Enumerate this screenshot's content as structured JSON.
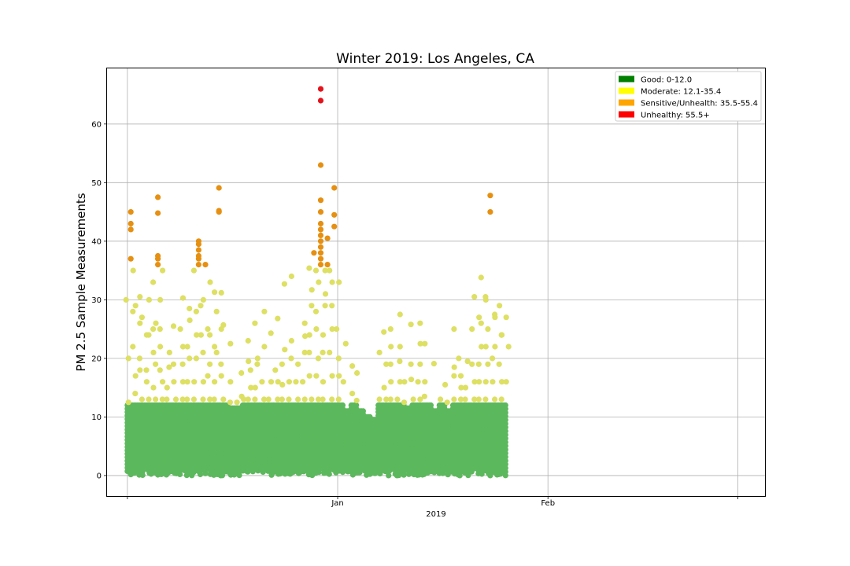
{
  "chart_data": {
    "type": "scatter",
    "title": "Winter 2019: Los Angeles, CA",
    "xlabel": "2019",
    "ylabel": "PM 2.5 Sample Measurements",
    "x_range": [
      "2018-12-01",
      "2019-02-28"
    ],
    "ylim": [
      -3.5,
      69.5
    ],
    "y_ticks": [
      0,
      10,
      20,
      30,
      40,
      50,
      60
    ],
    "x_ticks": [
      {
        "date": "2018-12-01",
        "label": ""
      },
      {
        "date": "2019-01-01",
        "label": "Jan"
      },
      {
        "date": "2019-02-01",
        "label": "Feb"
      },
      {
        "date": "2019-03-01",
        "label": ""
      }
    ],
    "x_major_label": "2019",
    "grid": true,
    "legend_position": "top-right",
    "legend": [
      {
        "label": "Good: 0-12.0",
        "color": "#008000"
      },
      {
        "label": "Moderate: 12.1-35.4",
        "color": "#ffff00"
      },
      {
        "label": "Sensitive/Unhealth: 35.5-55.4",
        "color": "#ffa500"
      },
      {
        "label": "Unhealthy: 55.5+",
        "color": "#ff0000"
      }
    ],
    "marker_colors": {
      "good": "#5cb85c",
      "moderate": "#dde063",
      "sensitive": "#e69012",
      "unhealthy": "#e4131b"
    },
    "daily": [
      {
        "date": "2018-12-01",
        "green_max": 12.0,
        "yellow": [
          12.5,
          17,
          20,
          29,
          30,
          35
        ],
        "orange": [
          37,
          42,
          43,
          45
        ],
        "red": []
      },
      {
        "date": "2018-12-02",
        "green_max": 12.0,
        "yellow": [
          14,
          18,
          22,
          26,
          28,
          30.5
        ],
        "orange": [],
        "red": []
      },
      {
        "date": "2018-12-03",
        "green_max": 12.0,
        "yellow": [
          13,
          16,
          20,
          24,
          27,
          30
        ],
        "orange": [],
        "red": []
      },
      {
        "date": "2018-12-04",
        "green_max": 12.0,
        "yellow": [
          13,
          15,
          18,
          21,
          24,
          26
        ],
        "orange": [],
        "red": []
      },
      {
        "date": "2018-12-05",
        "green_max": 12.0,
        "yellow": [
          13,
          16,
          19,
          22,
          25,
          30,
          33,
          35
        ],
        "orange": [
          36,
          37,
          37.5,
          44.8,
          47.5
        ],
        "red": []
      },
      {
        "date": "2018-12-06",
        "green_max": 12.0,
        "yellow": [
          13,
          15,
          18,
          21,
          25
        ],
        "orange": [],
        "red": []
      },
      {
        "date": "2018-12-07",
        "green_max": 12.0,
        "yellow": [
          13,
          16,
          18.5
        ],
        "orange": [],
        "red": []
      },
      {
        "date": "2018-12-08",
        "green_max": 12.0,
        "yellow": [
          13,
          16,
          19,
          22,
          25.5,
          30.3
        ],
        "orange": [],
        "red": []
      },
      {
        "date": "2018-12-09",
        "green_max": 12.0,
        "yellow": [
          13,
          16,
          19,
          22,
          25,
          26.5
        ],
        "orange": [],
        "red": []
      },
      {
        "date": "2018-12-10",
        "green_max": 12.0,
        "yellow": [
          13,
          16,
          20,
          24,
          28.5
        ],
        "orange": [],
        "red": []
      },
      {
        "date": "2018-12-11",
        "green_max": 12.0,
        "yellow": [
          13,
          16,
          20,
          24,
          28,
          30,
          35
        ],
        "orange": [
          36,
          37,
          37.5,
          38.5,
          39.5,
          40
        ],
        "red": []
      },
      {
        "date": "2018-12-12",
        "green_max": 12.0,
        "yellow": [
          13,
          17,
          21,
          25,
          29,
          33
        ],
        "orange": [
          36
        ],
        "red": []
      },
      {
        "date": "2018-12-13",
        "green_max": 12.0,
        "yellow": [
          13,
          16,
          19,
          22,
          24,
          31.3
        ],
        "orange": [],
        "red": []
      },
      {
        "date": "2018-12-14",
        "green_max": 12.0,
        "yellow": [
          13,
          17,
          21,
          25,
          28,
          31.2
        ],
        "orange": [
          45,
          45.2,
          49.1
        ],
        "red": []
      },
      {
        "date": "2018-12-15",
        "green_max": 12.0,
        "yellow": [
          13,
          16,
          19,
          22.5,
          25.7
        ],
        "orange": [],
        "red": []
      },
      {
        "date": "2018-12-16",
        "green_max": 11.5,
        "yellow": [
          12.5
        ],
        "orange": [],
        "red": []
      },
      {
        "date": "2018-12-17",
        "green_max": 11.5,
        "yellow": [
          12.5,
          13.5
        ],
        "orange": [],
        "red": []
      },
      {
        "date": "2018-12-18",
        "green_max": 12.0,
        "yellow": [
          13,
          15,
          17.5,
          19.5
        ],
        "orange": [],
        "red": []
      },
      {
        "date": "2018-12-19",
        "green_max": 12.0,
        "yellow": [
          13,
          15,
          18,
          20,
          23
        ],
        "orange": [],
        "red": []
      },
      {
        "date": "2018-12-20",
        "green_max": 12.0,
        "yellow": [
          13,
          16,
          19,
          22,
          26,
          28
        ],
        "orange": [],
        "red": []
      },
      {
        "date": "2018-12-21",
        "green_max": 12.0,
        "yellow": [
          13,
          16
        ],
        "orange": [],
        "red": []
      },
      {
        "date": "2018-12-22",
        "green_max": 12.0,
        "yellow": [
          13,
          16,
          24.3
        ],
        "orange": [],
        "red": []
      },
      {
        "date": "2018-12-23",
        "green_max": 12.0,
        "yellow": [
          13,
          15.5,
          18,
          21.5,
          26.8
        ],
        "orange": [],
        "red": []
      },
      {
        "date": "2018-12-24",
        "green_max": 12.0,
        "yellow": [
          13,
          16,
          19,
          23,
          32.7,
          34
        ],
        "orange": [],
        "red": []
      },
      {
        "date": "2018-12-25",
        "green_max": 12.0,
        "yellow": [
          13,
          16,
          20
        ],
        "orange": [],
        "red": []
      },
      {
        "date": "2018-12-26",
        "green_max": 12.0,
        "yellow": [
          13,
          16,
          19,
          23.8
        ],
        "orange": [],
        "red": []
      },
      {
        "date": "2018-12-27",
        "green_max": 12.0,
        "yellow": [
          13,
          17,
          21,
          24,
          26,
          31.7
        ],
        "orange": [],
        "red": []
      },
      {
        "date": "2018-12-28",
        "green_max": 12.0,
        "yellow": [
          13,
          17,
          21,
          25,
          29,
          33,
          35.4
        ],
        "orange": [
          38
        ],
        "red": []
      },
      {
        "date": "2018-12-29",
        "green_max": 12.0,
        "yellow": [
          13,
          16,
          20,
          24,
          28,
          31,
          35
        ],
        "orange": [
          36,
          37,
          38,
          39,
          40,
          41,
          42,
          43,
          45,
          47,
          53
        ],
        "red": [
          64,
          66
        ]
      },
      {
        "date": "2018-12-30",
        "green_max": 12.0,
        "yellow": [
          13,
          17,
          21,
          25,
          29,
          33,
          35
        ],
        "orange": [
          36,
          40.5
        ],
        "red": []
      },
      {
        "date": "2018-12-31",
        "green_max": 12.0,
        "yellow": [
          13,
          17,
          21,
          25,
          29,
          33,
          35
        ],
        "orange": [
          42.5,
          44.5,
          49.1
        ],
        "red": []
      },
      {
        "date": "2019-01-01",
        "green_max": 12.0,
        "yellow": [
          13,
          16,
          20,
          22.5
        ],
        "orange": [],
        "red": []
      },
      {
        "date": "2019-01-02",
        "green_max": 11.0,
        "yellow": [],
        "orange": [],
        "red": []
      },
      {
        "date": "2019-01-03",
        "green_max": 12.0,
        "yellow": [
          14,
          17.5,
          18.7
        ],
        "orange": [],
        "red": []
      },
      {
        "date": "2019-01-04",
        "green_max": 11.0,
        "yellow": [
          12.8
        ],
        "orange": [],
        "red": []
      },
      {
        "date": "2019-01-05",
        "green_max": 10.0,
        "yellow": [],
        "orange": [],
        "red": []
      },
      {
        "date": "2019-01-06",
        "green_max": 9.5,
        "yellow": [],
        "orange": [],
        "red": []
      },
      {
        "date": "2019-01-07",
        "green_max": 12.0,
        "yellow": [
          13,
          15,
          21
        ],
        "orange": [],
        "red": []
      },
      {
        "date": "2019-01-08",
        "green_max": 12.0,
        "yellow": [
          13,
          16,
          19,
          22,
          24.5
        ],
        "orange": [],
        "red": []
      },
      {
        "date": "2019-01-09",
        "green_max": 12.0,
        "yellow": [
          13,
          16,
          19,
          22,
          25,
          27.5
        ],
        "orange": [],
        "red": []
      },
      {
        "date": "2019-01-10",
        "green_max": 12.0,
        "yellow": [
          13,
          16,
          19.5
        ],
        "orange": [],
        "red": []
      },
      {
        "date": "2019-01-11",
        "green_max": 11.5,
        "yellow": [
          12.5,
          16.4
        ],
        "orange": [],
        "red": []
      },
      {
        "date": "2019-01-12",
        "green_max": 12.0,
        "yellow": [
          13,
          16,
          19,
          22.5,
          25.8
        ],
        "orange": [],
        "red": []
      },
      {
        "date": "2019-01-13",
        "green_max": 12.0,
        "yellow": [
          13,
          16,
          19,
          22.5,
          26
        ],
        "orange": [],
        "red": []
      },
      {
        "date": "2019-01-14",
        "green_max": 12.0,
        "yellow": [
          13.5,
          19.1
        ],
        "orange": [],
        "red": []
      },
      {
        "date": "2019-01-15",
        "green_max": 11.0,
        "yellow": [],
        "orange": [],
        "red": []
      },
      {
        "date": "2019-01-16",
        "green_max": 12.0,
        "yellow": [
          13,
          15.5
        ],
        "orange": [],
        "red": []
      },
      {
        "date": "2019-01-17",
        "green_max": 11.0,
        "yellow": [
          12.5,
          18.5
        ],
        "orange": [],
        "red": []
      },
      {
        "date": "2019-01-18",
        "green_max": 12.0,
        "yellow": [
          13,
          15,
          17,
          20,
          25
        ],
        "orange": [],
        "red": []
      },
      {
        "date": "2019-01-19",
        "green_max": 12.0,
        "yellow": [
          13,
          15,
          17
        ],
        "orange": [],
        "red": []
      },
      {
        "date": "2019-01-20",
        "green_max": 12.0,
        "yellow": [
          13,
          16,
          19.5
        ],
        "orange": [],
        "red": []
      },
      {
        "date": "2019-01-21",
        "green_max": 12.0,
        "yellow": [
          13,
          16,
          19,
          22,
          25,
          27,
          30.5
        ],
        "orange": [],
        "red": []
      },
      {
        "date": "2019-01-22",
        "green_max": 12.0,
        "yellow": [
          13,
          16,
          19,
          22,
          26,
          30,
          33.8
        ],
        "orange": [],
        "red": []
      },
      {
        "date": "2019-01-23",
        "green_max": 12.0,
        "yellow": [
          13,
          16,
          19,
          22,
          25,
          27,
          30.5
        ],
        "orange": [
          45,
          47.8
        ],
        "red": []
      },
      {
        "date": "2019-01-24",
        "green_max": 12.0,
        "yellow": [
          13,
          16,
          20,
          24,
          27.5,
          29
        ],
        "orange": [],
        "red": []
      },
      {
        "date": "2019-01-25",
        "green_max": 12.0,
        "yellow": [
          13,
          16,
          19,
          22,
          24,
          27
        ],
        "orange": [],
        "red": []
      }
    ],
    "daily_mean_green": true
  }
}
